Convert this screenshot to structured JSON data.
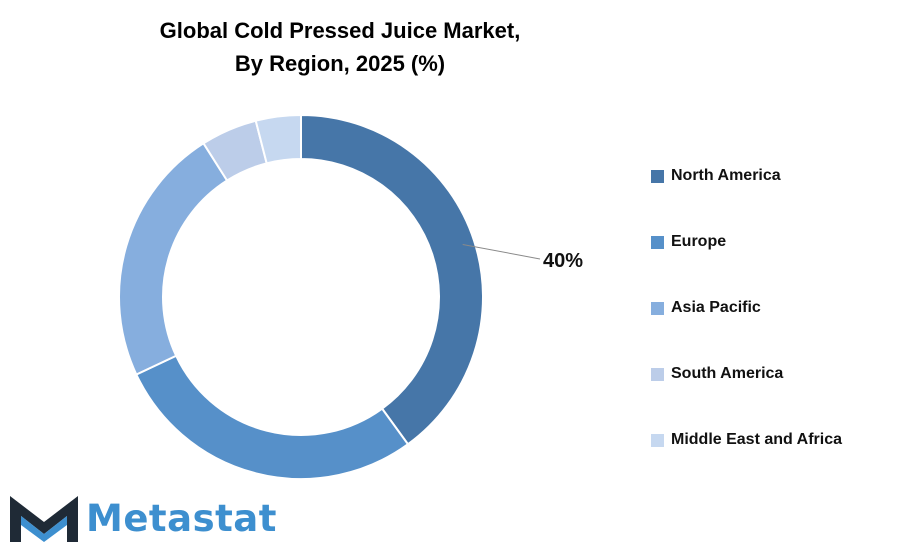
{
  "title_lines": [
    "Global Cold Pressed Juice Market,",
    "By Region, 2025 (%)"
  ],
  "brand": {
    "name": "Metastat",
    "icon": "metastat-m-logo"
  },
  "chart_data": {
    "type": "donut",
    "title": "Global Cold Pressed Juice Market, By Region, 2025 (%)",
    "unit": "%",
    "legend_position": "right",
    "categories": [
      "North America",
      "Europe",
      "Asia Pacific",
      "South America",
      "Middle East and Africa"
    ],
    "values": [
      40,
      28,
      23,
      5,
      4
    ],
    "colors": [
      "#4676a8",
      "#5690c9",
      "#86aede",
      "#bccde9",
      "#c6d8f0"
    ],
    "data_labels": [
      {
        "category": "North America",
        "text": "40%"
      }
    ]
  }
}
